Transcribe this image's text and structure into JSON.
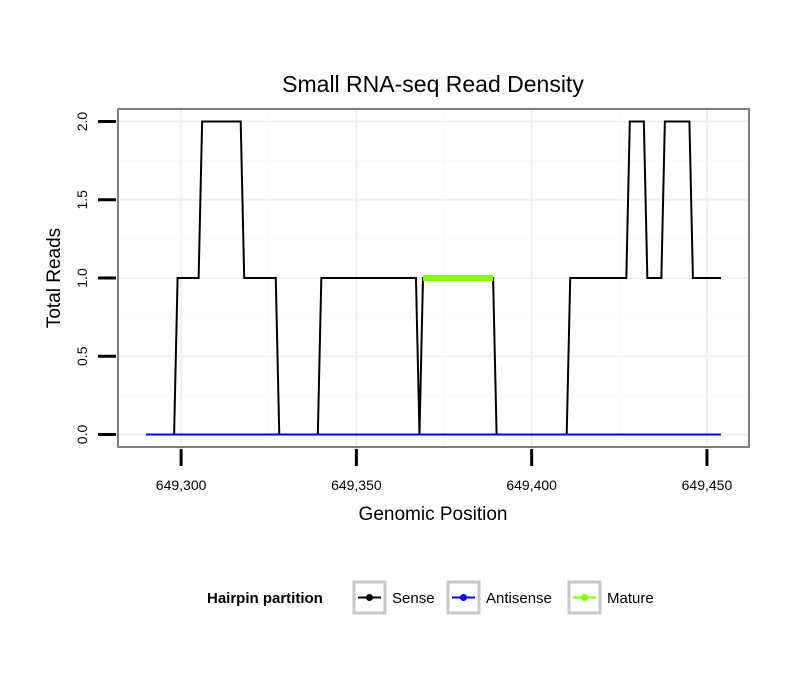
{
  "chart_data": {
    "type": "line",
    "title": "Small RNA-seq Read Density",
    "xlabel": "Genomic Position",
    "ylabel": "Total Reads",
    "xlim": [
      649282,
      649462
    ],
    "ylim": [
      -0.08,
      2.08
    ],
    "x_ticks": [
      649300,
      649350,
      649400,
      649450
    ],
    "x_tick_labels": [
      "649,300",
      "649,350",
      "649,400",
      "649,450"
    ],
    "y_ticks": [
      0,
      0.5,
      1,
      1.5,
      2
    ],
    "y_tick_labels": [
      "0.0",
      "0.5",
      "1.0",
      "1.5",
      "2.0"
    ],
    "grid": true,
    "legend": {
      "title": "Hairpin partition",
      "position": "bottom",
      "entries": [
        {
          "label": "Sense",
          "color": "#000000"
        },
        {
          "label": "Antisense",
          "color": "#0000ff"
        },
        {
          "label": "Mature",
          "color": "#7fff00"
        }
      ]
    },
    "series": [
      {
        "name": "Sense",
        "color": "#000000",
        "x": [
          649290,
          649298,
          649299,
          649305,
          649306,
          649317,
          649318,
          649327,
          649328,
          649339,
          649340,
          649367,
          649368,
          649369,
          649389,
          649390,
          649410,
          649411,
          649427,
          649428,
          649432,
          649433,
          649437,
          649438,
          649445,
          649446,
          649454
        ],
        "y": [
          0,
          0,
          1,
          1,
          2,
          2,
          1,
          1,
          0,
          0,
          1,
          1,
          0,
          1,
          1,
          0,
          0,
          1,
          1,
          2,
          2,
          1,
          1,
          2,
          2,
          1,
          1
        ]
      },
      {
        "name": "Antisense",
        "color": "#0000ff",
        "x": [
          649290,
          649454
        ],
        "y": [
          0,
          0
        ]
      },
      {
        "name": "Mature",
        "color": "#7fff00",
        "x": [
          649369,
          649389
        ],
        "y": [
          1,
          1
        ]
      }
    ]
  }
}
